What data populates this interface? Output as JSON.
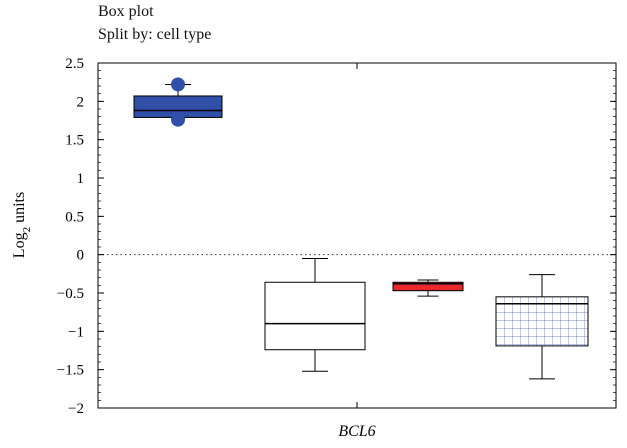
{
  "chart_data": {
    "type": "box",
    "title": "Box plot",
    "subtitle": "Split by: cell type",
    "ylabel_main": "Log",
    "ylabel_sub": "2",
    "ylabel_tail": " units",
    "xlabel": "BCL6",
    "ylim": [
      -2,
      2.5
    ],
    "yticks": [
      2.5,
      2,
      1.5,
      1,
      0.5,
      0,
      -0.5,
      -1,
      -1.5,
      -2
    ],
    "ytick_labels": [
      "2.5",
      "2",
      "1.5",
      "1",
      "0.5",
      "0",
      "−0.5",
      "−1",
      "−1.5",
      "−2"
    ],
    "reference_line": 0,
    "boxes": [
      {
        "q1": 1.79,
        "median": 1.88,
        "q3": 2.07,
        "whisker_low": 1.79,
        "whisker_high": 2.22,
        "outliers": [
          2.22,
          1.76
        ],
        "fill": "#2f4fa8",
        "pattern": "solid"
      },
      {
        "q1": -1.24,
        "median": -0.9,
        "q3": -0.36,
        "whisker_low": -1.52,
        "whisker_high": -0.05,
        "outliers": [],
        "fill": "#ffffff",
        "pattern": "solid"
      },
      {
        "q1": -0.47,
        "median": -0.38,
        "q3": -0.36,
        "whisker_low": -0.54,
        "whisker_high": -0.33,
        "outliers": [],
        "fill": "#e8282b",
        "pattern": "solid"
      },
      {
        "q1": -1.19,
        "median": -0.64,
        "q3": -0.55,
        "whisker_low": -1.62,
        "whisker_high": -0.26,
        "outliers": [],
        "fill": "#ffffff",
        "pattern": "grid"
      }
    ],
    "grid": false,
    "legend": "none"
  }
}
